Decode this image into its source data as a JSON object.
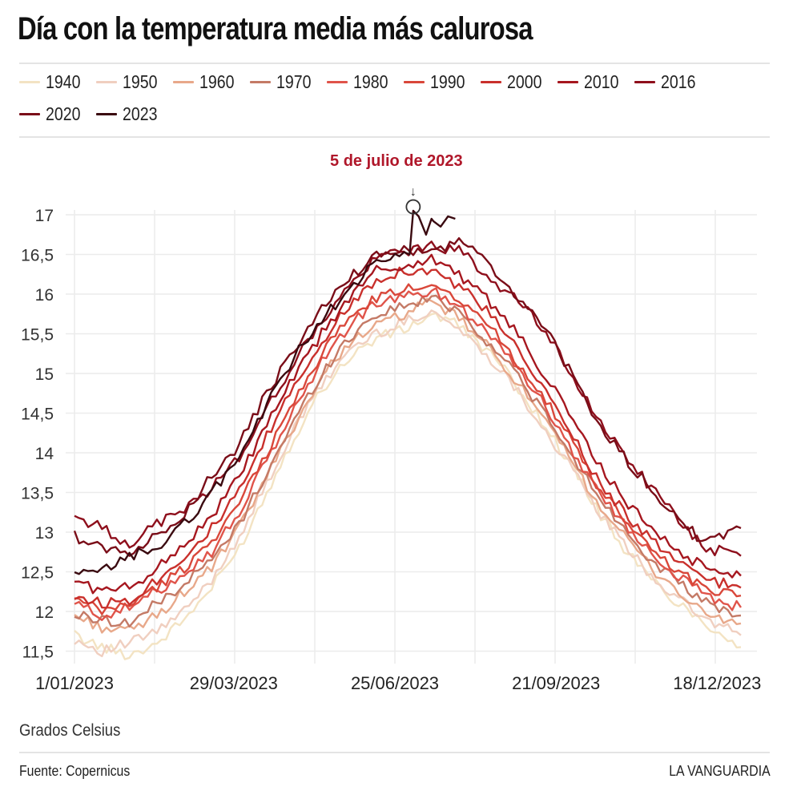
{
  "chart_data": {
    "type": "line",
    "title": "Día con la temperatura media más calurosa",
    "xlabel": "",
    "ylabel": "Grados Celsius",
    "unit_label": "Grados Celsius",
    "source": "Fuente: Copernicus",
    "brand": "LA VANGUARDIA",
    "ylim": [
      11.5,
      17
    ],
    "yticks": [
      "17",
      "16,5",
      "16",
      "15,5",
      "15",
      "14,5",
      "14",
      "13,5",
      "13",
      "12,5",
      "12",
      "11,5"
    ],
    "ytick_values": [
      17,
      16.5,
      16,
      15.5,
      15,
      14.5,
      14,
      13.5,
      13,
      12.5,
      12,
      11.5
    ],
    "xticks": [
      "1/01/2023",
      "29/03/2023",
      "25/06/2023",
      "21/09/2023",
      "18/12/2023"
    ],
    "xtick_days": [
      0,
      87,
      175,
      263,
      351
    ],
    "x_domain_days": [
      0,
      364
    ],
    "grid": true,
    "legend_position": "top",
    "annotation": {
      "text": "5 de julio de 2023",
      "day": 185,
      "value": 17.08,
      "arrow": "↓"
    },
    "x_days": [
      0,
      15,
      30,
      45,
      60,
      75,
      90,
      105,
      120,
      135,
      150,
      165,
      180,
      195,
      210,
      225,
      240,
      255,
      270,
      285,
      300,
      315,
      330,
      345,
      364
    ],
    "series": [
      {
        "name": "1940",
        "color": "#f3e3c3",
        "values": [
          11.7,
          11.55,
          11.45,
          11.6,
          11.9,
          12.3,
          12.8,
          13.5,
          14.2,
          14.8,
          15.2,
          15.45,
          15.55,
          15.75,
          15.6,
          15.3,
          14.9,
          14.4,
          13.9,
          13.3,
          12.8,
          12.4,
          12.1,
          11.85,
          11.55
        ]
      },
      {
        "name": "1950",
        "color": "#f0cfc0",
        "values": [
          11.65,
          11.5,
          11.6,
          11.75,
          12.0,
          12.4,
          12.95,
          13.6,
          14.3,
          14.85,
          15.3,
          15.5,
          15.65,
          15.8,
          15.55,
          15.25,
          14.85,
          14.35,
          13.85,
          13.3,
          12.85,
          12.45,
          12.15,
          11.9,
          11.7
        ]
      },
      {
        "name": "1960",
        "color": "#e8a88a",
        "values": [
          11.95,
          11.8,
          11.75,
          11.95,
          12.25,
          12.55,
          13.05,
          13.7,
          14.35,
          14.95,
          15.4,
          15.6,
          15.75,
          15.9,
          15.7,
          15.35,
          14.95,
          14.45,
          13.95,
          13.4,
          12.95,
          12.55,
          12.25,
          11.95,
          11.85
        ]
      },
      {
        "name": "1970",
        "color": "#c47a66",
        "values": [
          11.95,
          11.9,
          11.85,
          12.1,
          12.35,
          12.65,
          13.1,
          13.75,
          14.4,
          15.0,
          15.45,
          15.75,
          15.85,
          15.95,
          15.8,
          15.4,
          15.05,
          14.55,
          14.0,
          13.5,
          13.05,
          12.65,
          12.35,
          12.1,
          11.95
        ]
      },
      {
        "name": "1980",
        "color": "#e0544a",
        "values": [
          12.1,
          11.95,
          12.05,
          12.25,
          12.5,
          12.75,
          13.25,
          13.9,
          14.55,
          15.15,
          15.6,
          15.9,
          15.95,
          16.05,
          15.85,
          15.55,
          15.15,
          14.65,
          14.1,
          13.55,
          13.1,
          12.75,
          12.45,
          12.2,
          12.05
        ]
      },
      {
        "name": "1990",
        "color": "#d9473a",
        "values": [
          12.15,
          12.0,
          12.1,
          12.3,
          12.55,
          12.9,
          13.35,
          14.0,
          14.65,
          15.25,
          15.7,
          15.95,
          16.05,
          16.15,
          15.95,
          15.65,
          15.2,
          14.75,
          14.2,
          13.6,
          13.15,
          12.8,
          12.5,
          12.3,
          12.2
        ]
      },
      {
        "name": "2000",
        "color": "#c9302c",
        "values": [
          12.2,
          12.1,
          12.15,
          12.4,
          12.7,
          13.05,
          13.5,
          14.2,
          14.85,
          15.4,
          15.85,
          16.2,
          16.3,
          16.3,
          16.1,
          15.8,
          15.35,
          14.85,
          14.3,
          13.7,
          13.25,
          12.9,
          12.6,
          12.4,
          12.3
        ]
      },
      {
        "name": "2010",
        "color": "#a6171f",
        "values": [
          12.4,
          12.25,
          12.3,
          12.55,
          12.85,
          13.2,
          13.7,
          14.35,
          14.95,
          15.5,
          15.95,
          16.3,
          16.35,
          16.45,
          16.25,
          15.95,
          15.55,
          15.05,
          14.5,
          13.9,
          13.4,
          13.05,
          12.75,
          12.55,
          12.45
        ]
      },
      {
        "name": "2016",
        "color": "#8e0f1c",
        "values": [
          13.2,
          13.05,
          12.85,
          13.1,
          13.3,
          13.55,
          13.95,
          14.55,
          15.15,
          15.65,
          16.1,
          16.45,
          16.55,
          16.6,
          16.55,
          16.25,
          15.95,
          15.6,
          15.05,
          14.45,
          14.0,
          13.55,
          13.15,
          12.8,
          12.7
        ]
      },
      {
        "name": "2020",
        "color": "#7a0d18",
        "values": [
          12.95,
          12.8,
          12.75,
          12.95,
          13.25,
          13.7,
          14.1,
          14.75,
          15.3,
          15.8,
          16.2,
          16.5,
          16.55,
          16.5,
          16.7,
          16.4,
          16.0,
          15.65,
          15.05,
          14.4,
          13.95,
          13.55,
          13.15,
          12.85,
          13.05
        ]
      },
      {
        "name": "2023",
        "color": "#3a0a10",
        "values": [
          12.45,
          12.5,
          12.7,
          12.8,
          13.1,
          13.5,
          13.95,
          14.6,
          15.2,
          15.7,
          16.05,
          16.4,
          16.5,
          16.95,
          null,
          null,
          null,
          null,
          null,
          null,
          null,
          null,
          null,
          null,
          null
        ]
      }
    ],
    "series_2023_tail": {
      "days": [
        183,
        185,
        188,
        192,
        196,
        200,
        204,
        208
      ],
      "values": [
        16.5,
        17.05,
        16.98,
        16.75,
        16.92,
        16.85,
        16.98,
        16.95
      ]
    }
  }
}
